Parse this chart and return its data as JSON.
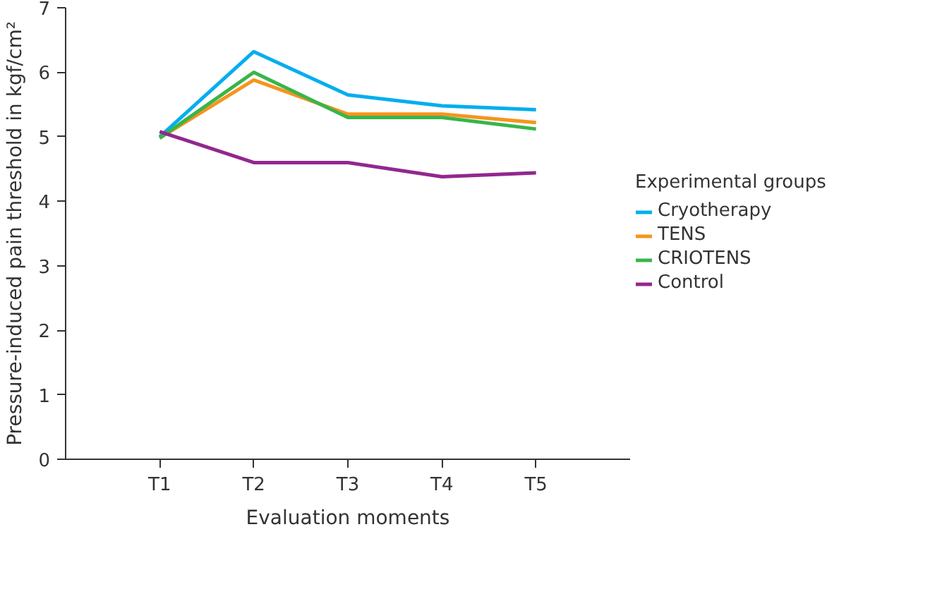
{
  "chart_data": {
    "type": "line",
    "xlabel": "Evaluation moments",
    "ylabel": "Pressure-induced pain threshold in kgf/cm²",
    "legend_title": "Experimental groups",
    "categories": [
      "T1",
      "T2",
      "T3",
      "T4",
      "T5"
    ],
    "series": [
      {
        "name": "Cryotherapy",
        "color": "#00aeef",
        "values": [
          5.0,
          6.32,
          5.65,
          5.48,
          5.42
        ]
      },
      {
        "name": "TENS",
        "color": "#f7941d",
        "values": [
          4.98,
          5.88,
          5.35,
          5.35,
          5.22
        ]
      },
      {
        "name": "CRIOTENS",
        "color": "#39b54a",
        "values": [
          4.98,
          6.0,
          5.3,
          5.3,
          5.12
        ]
      },
      {
        "name": "Control",
        "color": "#92278f",
        "values": [
          5.08,
          4.6,
          4.6,
          4.38,
          4.44
        ]
      }
    ],
    "ylim": [
      0,
      7
    ],
    "yticks": [
      0,
      1,
      2,
      3,
      4,
      5,
      6,
      7
    ],
    "grid": false,
    "legend": "right",
    "marker": "none",
    "line_style": "solid"
  }
}
